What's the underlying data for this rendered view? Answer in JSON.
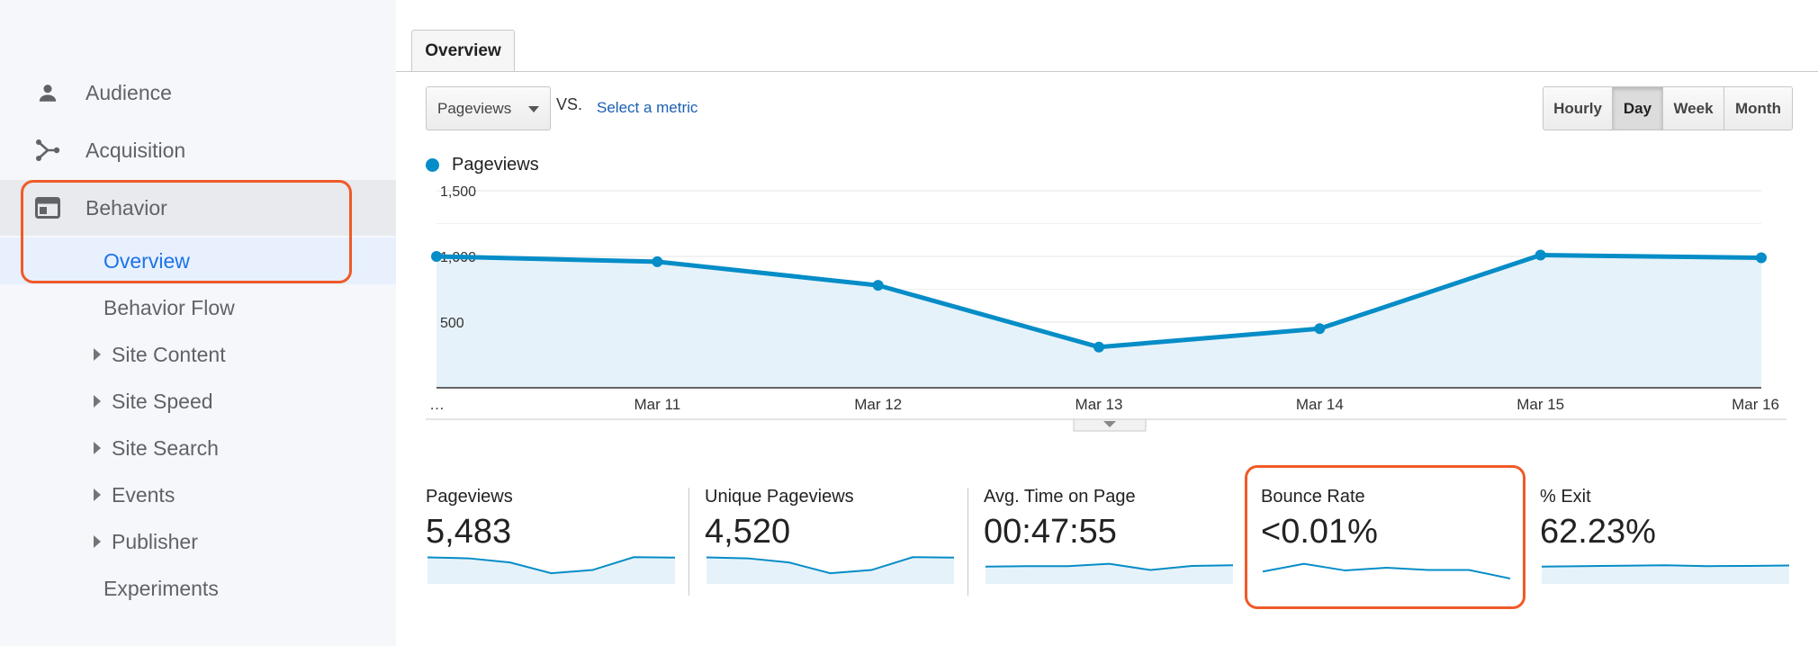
{
  "sidebar": {
    "top_items": [
      {
        "label": "Audience",
        "icon": "person-icon"
      },
      {
        "label": "Acquisition",
        "icon": "acquisition-icon"
      },
      {
        "label": "Behavior",
        "icon": "behavior-icon"
      }
    ],
    "behavior_subitems": [
      {
        "label": "Overview",
        "active": true,
        "expandable": false
      },
      {
        "label": "Behavior Flow",
        "expandable": false
      },
      {
        "label": "Site Content",
        "expandable": true
      },
      {
        "label": "Site Speed",
        "expandable": true
      },
      {
        "label": "Site Search",
        "expandable": true
      },
      {
        "label": "Events",
        "expandable": true
      },
      {
        "label": "Publisher",
        "expandable": true
      },
      {
        "label": "Experiments",
        "expandable": false
      }
    ]
  },
  "main": {
    "tab_label": "Overview",
    "metric_select": "Pageviews",
    "vs_label": "VS.",
    "select_metric_link": "Select a metric",
    "granularity": [
      "Hourly",
      "Day",
      "Week",
      "Month"
    ],
    "granularity_selected": "Day"
  },
  "chart_data": {
    "type": "area",
    "series": [
      {
        "name": "Pageviews",
        "values": [
          1000,
          960,
          780,
          310,
          450,
          1010,
          990
        ]
      }
    ],
    "x": [
      "…",
      "Mar 11",
      "Mar 12",
      "Mar 13",
      "Mar 14",
      "Mar 15",
      "Mar 16"
    ],
    "yticks": [
      "1,500",
      "1,000",
      "500"
    ],
    "ylim": [
      0,
      1500
    ],
    "grid": true,
    "legend": "top-left",
    "color": "#058dc7",
    "fill_color": "#e6f2f9"
  },
  "scorecards": [
    {
      "name": "Pageviews",
      "value": "5,483",
      "spark": [
        1000,
        960,
        780,
        310,
        450,
        1010,
        990
      ]
    },
    {
      "name": "Unique Pageviews",
      "value": "4,520",
      "spark": [
        1000,
        960,
        780,
        310,
        450,
        1010,
        990
      ]
    },
    {
      "name": "Avg. Time on Page",
      "value": "00:47:55",
      "spark": [
        600,
        620,
        620,
        720,
        450,
        630,
        660
      ]
    },
    {
      "name": "Bounce Rate",
      "value": "<0.01%",
      "spark": [
        380,
        720,
        430,
        550,
        450,
        450,
        80
      ]
    },
    {
      "name": "% Exit",
      "value": "62.23%",
      "spark": [
        600,
        620,
        640,
        660,
        620,
        630,
        650
      ]
    }
  ],
  "colors": {
    "accent": "#058dc7",
    "highlight": "#f05a28",
    "active_link": "#1a73e8"
  }
}
